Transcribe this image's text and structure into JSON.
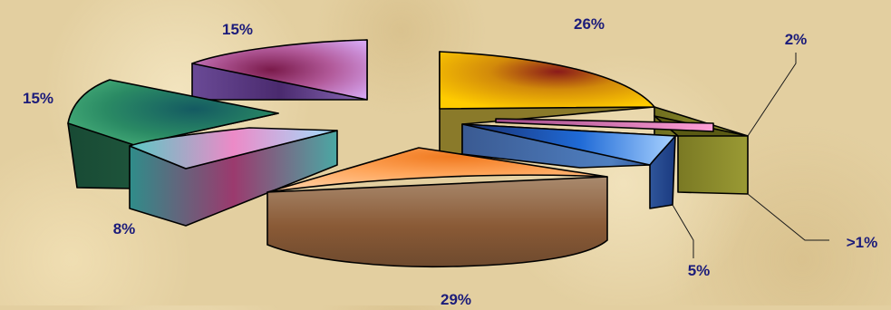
{
  "chart_data": {
    "type": "pie",
    "style": "exploded-3d",
    "slices": [
      {
        "label": "26%",
        "value": 26,
        "color": "#f5b400"
      },
      {
        "label": "2%",
        "value": 2,
        "color": "#8b8a2d"
      },
      {
        "label": ">1%",
        "value": 1,
        "color": "#f58cc8"
      },
      {
        "label": "5%",
        "value": 5,
        "color": "#6fa2e6"
      },
      {
        "label": "29%",
        "value": 29,
        "color": "#f79a52"
      },
      {
        "label": "8%",
        "value": 8,
        "color": "#5fb8b0"
      },
      {
        "label": "15%",
        "value": 15,
        "color": "#2e8a5e"
      },
      {
        "label": "15%",
        "value": 15,
        "color": "#b98ad8"
      }
    ],
    "legend": "none",
    "title": ""
  }
}
